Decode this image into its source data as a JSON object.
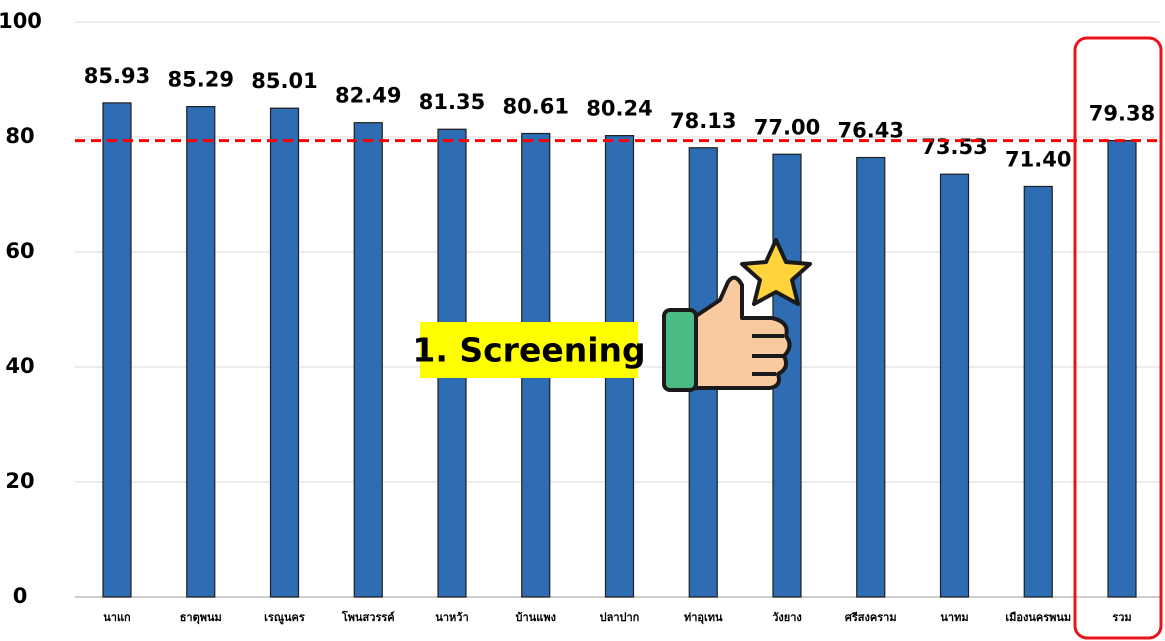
{
  "chart_data": {
    "type": "bar",
    "categories": [
      "นาแก",
      "ธาตุพนม",
      "เรณูนคร",
      "โพนสวรรค์",
      "นาหว้า",
      "บ้านแพง",
      "ปลาปาก",
      "ท่าอุเทน",
      "วังยาง",
      "ศรีสงคราม",
      "นาทม",
      "เมืองนครพนม",
      "รวม"
    ],
    "values": [
      85.93,
      85.29,
      85.01,
      82.49,
      81.35,
      80.61,
      80.24,
      78.13,
      77.0,
      76.43,
      73.53,
      71.4,
      79.38
    ],
    "value_labels": [
      "85.93",
      "85.29",
      "85.01",
      "82.49",
      "81.35",
      "80.61",
      "80.24",
      "78.13",
      "77.00",
      "76.43",
      "73.53",
      "71.40",
      "79.38"
    ],
    "color": "#2e6db4",
    "ylim": [
      0,
      100
    ],
    "yticks": [
      0,
      20,
      40,
      60,
      80,
      100
    ],
    "grid": true,
    "reference_line": {
      "value": 79.38,
      "color": "#ff0000"
    },
    "annotation": "1. Screening"
  }
}
